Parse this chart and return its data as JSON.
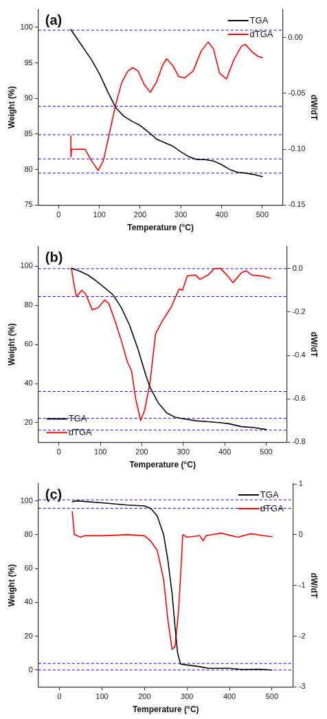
{
  "chart_data": [
    {
      "type": "line",
      "xlabel": "Temperature (°C)",
      "ylabel": "Weight (%)",
      "y2label": "dW/dT",
      "annotations": [
        "(a)"
      ],
      "xlim": [
        -50,
        550
      ],
      "xticks": [
        0,
        100,
        200,
        300,
        400,
        500
      ],
      "ylim": [
        75,
        102.5
      ],
      "yticks": [
        75,
        80,
        85,
        90,
        95,
        100
      ],
      "y2lim": [
        -0.15,
        0.025
      ],
      "y2ticks": [
        {
          "value": -0.15,
          "label": "-0.15"
        },
        {
          "value": -0.1,
          "label": "-0.10"
        },
        {
          "value": -0.05,
          "label": "-0.05"
        },
        {
          "value": 0,
          "label": "0.00"
        }
      ],
      "grid": false,
      "legend": "top right",
      "marker": "none",
      "line_style": "solid",
      "series": [
        {
          "name": "TGA",
          "color": "#000000",
          "x": [
            30,
            50,
            80,
            100,
            120,
            140,
            160,
            180,
            200,
            220,
            240,
            260,
            280,
            300,
            320,
            340,
            360,
            380,
            400,
            420,
            440,
            460,
            480,
            500
          ],
          "values": [
            99.7,
            98,
            95.5,
            93.5,
            91,
            88.7,
            87.5,
            86.8,
            86.2,
            85.3,
            84.3,
            83.8,
            83.3,
            82.5,
            81.8,
            81.4,
            81.4,
            81.2,
            80.7,
            80,
            79.6,
            79.5,
            79.3,
            79
          ]
        },
        {
          "name": "dTGA",
          "color": "#ff0000",
          "axis": "y2",
          "x": [
            30,
            30,
            32,
            50,
            65,
            80,
            97,
            110,
            125,
            140,
            155,
            170,
            182,
            195,
            210,
            225,
            240,
            255,
            265,
            280,
            295,
            310,
            330,
            350,
            367,
            380,
            395,
            412,
            430,
            448,
            458,
            475,
            490,
            500
          ],
          "values": [
            -0.088,
            -0.107,
            -0.1,
            -0.1,
            -0.1,
            -0.11,
            -0.119,
            -0.11,
            -0.085,
            -0.06,
            -0.04,
            -0.03,
            -0.027,
            -0.03,
            -0.042,
            -0.049,
            -0.04,
            -0.025,
            -0.019,
            -0.025,
            -0.035,
            -0.036,
            -0.03,
            -0.012,
            -0.004,
            -0.01,
            -0.032,
            -0.037,
            -0.02,
            -0.008,
            -0.006,
            -0.013,
            -0.017,
            -0.018
          ]
        }
      ],
      "ref_lines": [
        {
          "axis": "y",
          "value": 99.6,
          "color": "#0000ff",
          "line_style": "dashed"
        },
        {
          "axis": "y",
          "value": 88.9,
          "color": "#0000ff",
          "line_style": "dashed"
        },
        {
          "axis": "y",
          "value": 84.9,
          "color": "#0000ff",
          "line_style": "dashed"
        },
        {
          "axis": "y",
          "value": 81.5,
          "color": "#0000ff",
          "line_style": "dashed"
        },
        {
          "axis": "y",
          "value": 79.5,
          "color": "#0000ff",
          "line_style": "dashed"
        }
      ]
    },
    {
      "type": "line",
      "xlabel": "Temperature (°C)",
      "ylabel": "Weight (%)",
      "y2label": "dW/dT",
      "annotations": [
        "(b)"
      ],
      "xlim": [
        -50,
        550
      ],
      "xticks": [
        0,
        100,
        200,
        300,
        400,
        500
      ],
      "ylim": [
        10,
        110
      ],
      "yticks": [
        20,
        40,
        60,
        80,
        100
      ],
      "y2lim": [
        -0.8,
        0.1
      ],
      "y2ticks": [
        {
          "value": -0.8,
          "label": "-0.8"
        },
        {
          "value": -0.6,
          "label": "-0.6"
        },
        {
          "value": -0.4,
          "label": "-0.4"
        },
        {
          "value": -0.2,
          "label": "-0.2"
        },
        {
          "value": 0,
          "label": "0.0"
        }
      ],
      "grid": false,
      "legend": "bottom left",
      "marker": "none",
      "line_style": "solid",
      "series": [
        {
          "name": "TGA",
          "color": "#000000",
          "x": [
            30,
            50,
            70,
            90,
            110,
            130,
            150,
            170,
            190,
            200,
            210,
            220,
            240,
            260,
            280,
            300,
            330,
            360,
            390,
            410,
            440,
            470,
            500
          ],
          "values": [
            99,
            97.5,
            95.5,
            92.5,
            89,
            85.5,
            79,
            70,
            58,
            51,
            44,
            38,
            30,
            25,
            22.8,
            22,
            21,
            20.5,
            20,
            19.5,
            18,
            17.5,
            16.5
          ]
        },
        {
          "name": "dTGA",
          "color": "#ff0000",
          "axis": "y2",
          "x": [
            30,
            35,
            42,
            55,
            65,
            80,
            95,
            110,
            120,
            135,
            150,
            165,
            175,
            185,
            197,
            207,
            220,
            233,
            250,
            270,
            290,
            298,
            310,
            330,
            340,
            360,
            375,
            390,
            405,
            420,
            440,
            452,
            465,
            490,
            510
          ],
          "values": [
            0,
            -0.06,
            -0.13,
            -0.1,
            -0.12,
            -0.19,
            -0.18,
            -0.145,
            -0.16,
            -0.24,
            -0.33,
            -0.43,
            -0.47,
            -0.6,
            -0.7,
            -0.65,
            -0.52,
            -0.3,
            -0.24,
            -0.18,
            -0.094,
            -0.1,
            -0.033,
            -0.03,
            -0.05,
            -0.03,
            0,
            0,
            -0.03,
            -0.065,
            -0.02,
            -0.01,
            -0.03,
            -0.035,
            -0.045
          ]
        }
      ],
      "ref_lines": [
        {
          "axis": "y",
          "value": 98.8,
          "color": "#0000ff",
          "line_style": "dashed"
        },
        {
          "axis": "y",
          "value": 84.5,
          "color": "#0000ff",
          "line_style": "dashed"
        },
        {
          "axis": "y",
          "value": 36,
          "color": "#0000ff",
          "line_style": "dashed"
        },
        {
          "axis": "y",
          "value": 22.3,
          "color": "#0000ff",
          "line_style": "dashed"
        },
        {
          "axis": "y",
          "value": 16.2,
          "color": "#0000ff",
          "line_style": "dashed"
        }
      ]
    },
    {
      "type": "line",
      "xlabel": "Temperature (°C)",
      "ylabel": "Weight (%)",
      "y2label": "dW/dT",
      "annotations": [
        "(c)"
      ],
      "xlim": [
        -50,
        550
      ],
      "xticks": [
        0,
        100,
        200,
        300,
        400,
        500
      ],
      "ylim": [
        -10,
        110
      ],
      "yticks": [
        0,
        20,
        40,
        60,
        80,
        100
      ],
      "y2lim": [
        -3,
        1
      ],
      "y2ticks": [
        -3,
        -2,
        -1,
        0,
        1
      ],
      "grid": false,
      "legend": "top right",
      "marker": "none",
      "line_style": "solid",
      "series": [
        {
          "name": "TGA",
          "color": "#000000",
          "x": [
            30,
            40,
            100,
            160,
            200,
            215,
            230,
            245,
            255,
            265,
            272,
            278,
            285,
            300,
            330,
            350,
            400,
            430,
            470,
            500
          ],
          "values": [
            99.5,
            100,
            98.8,
            97.5,
            97,
            95.5,
            91,
            80,
            65,
            45,
            25,
            10,
            3.5,
            3,
            2,
            1,
            1,
            0.3,
            0.5,
            0
          ]
        },
        {
          "name": "dTGA",
          "color": "#ff0000",
          "axis": "y2",
          "x": [
            30,
            35,
            50,
            60,
            100,
            160,
            200,
            215,
            230,
            245,
            255,
            265,
            272,
            280,
            285,
            290,
            300,
            330,
            338,
            345,
            380,
            420,
            450,
            480,
            500
          ],
          "values": [
            0.45,
            0,
            -0.05,
            -0.02,
            -0.02,
            0,
            -0.02,
            -0.13,
            -0.31,
            -0.88,
            -1.68,
            -2.26,
            -2.2,
            -1.51,
            -0.8,
            0,
            -0.05,
            -0.02,
            -0.12,
            -0.02,
            0.03,
            -0.05,
            0.02,
            -0.02,
            -0.04
          ]
        }
      ],
      "ref_lines": [
        {
          "axis": "y",
          "value": 100.6,
          "color": "#0000ff",
          "line_style": "dashed"
        },
        {
          "axis": "y",
          "value": 95.6,
          "color": "#0000ff",
          "line_style": "dashed"
        },
        {
          "axis": "y",
          "value": 3.9,
          "color": "#0000ff",
          "line_style": "dashed"
        },
        {
          "axis": "y",
          "value": 0,
          "color": "#0000ff",
          "line_style": "dashed"
        }
      ]
    }
  ]
}
